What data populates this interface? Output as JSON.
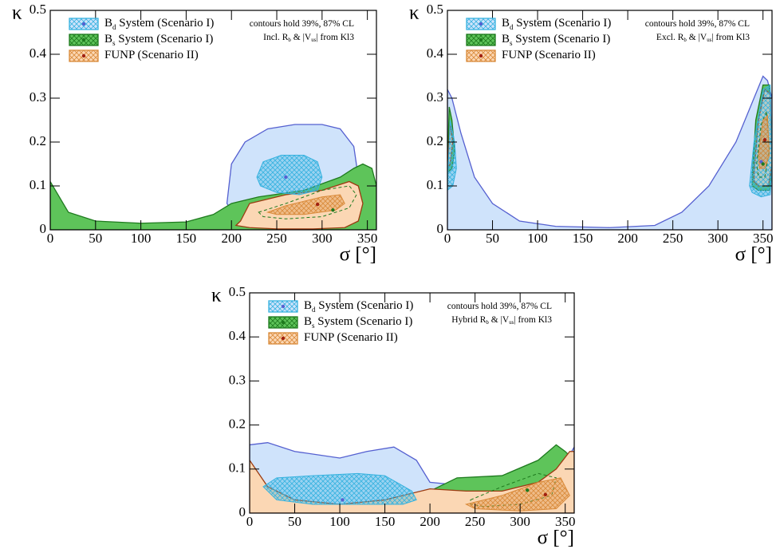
{
  "chart_data": [
    {
      "type": "contour",
      "xlabel": "σ [°]",
      "ylabel": "κ",
      "xlim": [
        0,
        360
      ],
      "ylim": [
        0,
        0.5
      ],
      "xticks": [
        0,
        50,
        100,
        150,
        200,
        250,
        300,
        350
      ],
      "yticks": [
        0,
        0.1,
        0.2,
        0.3,
        0.4,
        0.5
      ],
      "notes": [
        [
          "contours hold 39%, 87% CL"
        ],
        [
          "Incl. R",
          "b",
          " & |V",
          "us",
          "| from Kl3"
        ]
      ],
      "series": [
        {
          "name": [
            "B",
            "d",
            " System (Scenario I)"
          ],
          "color": "#cfe3fb",
          "line": "#5560d0",
          "hatch": "#36b2df",
          "inner_style": "hatch",
          "point": "#5560d0",
          "outer": [
            {
              "x": [
                195,
                200,
                215,
                240,
                270,
                300,
                320,
                335,
                340,
                338,
                330,
                310,
                280,
                250,
                220,
                200
              ],
              "y": [
                0.06,
                0.15,
                0.2,
                0.23,
                0.24,
                0.24,
                0.23,
                0.19,
                0.12,
                0.06,
                0.03,
                0.01,
                0.005,
                0.01,
                0.03,
                0.045
              ]
            }
          ],
          "inner": [
            {
              "x": [
                228,
                235,
                255,
                280,
                295,
                300,
                295,
                275,
                250,
                232
              ],
              "y": [
                0.12,
                0.155,
                0.17,
                0.17,
                0.155,
                0.12,
                0.09,
                0.08,
                0.085,
                0.1
              ]
            }
          ],
          "best_fit": {
            "x": 260,
            "y": 0.12
          }
        },
        {
          "name": [
            "B",
            "s",
            " System (Scenario I)"
          ],
          "color": "#5ec45a",
          "line": "#1e7a1e",
          "hatch": "#1e7a1e",
          "inner_style": "dashed",
          "point": "#1e7a1e",
          "outer": [
            {
              "x": [
                0,
                0,
                20,
                50,
                100,
                150,
                180,
                200,
                230,
                280,
                320,
                335,
                345,
                355,
                360,
                360
              ],
              "y": [
                0,
                0.11,
                0.04,
                0.02,
                0.015,
                0.018,
                0.035,
                0.06,
                0.075,
                0.09,
                0.12,
                0.14,
                0.15,
                0.14,
                0.1,
                0
              ]
            }
          ],
          "inner": [
            {
              "x": [
                230,
                260,
                300,
                330,
                338,
                330,
                300,
                260,
                235
              ],
              "y": [
                0.04,
                0.06,
                0.09,
                0.1,
                0.08,
                0.05,
                0.03,
                0.025,
                0.03
              ]
            }
          ],
          "best_fit": {
            "x": 312,
            "y": 0.045
          }
        },
        {
          "name": [
            "FUNP (Scenario II)"
          ],
          "color": "#fbd7b4",
          "line": "#9a3a10",
          "hatch": "#d98a3a",
          "inner_style": "hatch",
          "point": "#a02010",
          "outer": [
            {
              "x": [
                210,
                220,
                260,
                300,
                330,
                340,
                345,
                340,
                325,
                290,
                250,
                220,
                205
              ],
              "y": [
                0.02,
                0.06,
                0.08,
                0.09,
                0.11,
                0.1,
                0.06,
                0.02,
                0.005,
                0.002,
                0.002,
                0.005,
                0.01
              ]
            }
          ],
          "inner": [
            {
              "x": [
                240,
                260,
                300,
                320,
                325,
                315,
                280,
                250
              ],
              "y": [
                0.04,
                0.055,
                0.075,
                0.08,
                0.06,
                0.045,
                0.035,
                0.035
              ]
            }
          ],
          "best_fit": {
            "x": 295,
            "y": 0.058
          }
        }
      ]
    },
    {
      "type": "contour",
      "xlabel": "σ [°]",
      "ylabel": "κ",
      "xlim": [
        0,
        360
      ],
      "ylim": [
        0,
        0.5
      ],
      "xticks": [
        0,
        50,
        100,
        150,
        200,
        250,
        300,
        350
      ],
      "yticks": [
        0,
        0.1,
        0.2,
        0.3,
        0.4,
        0.5
      ],
      "notes": [
        [
          "contours hold 39%, 87% CL"
        ],
        [
          "Excl. R",
          "b",
          " & |V",
          "us",
          "| from Kl3"
        ]
      ],
      "series": [
        {
          "name": [
            "B",
            "d",
            " System (Scenario I)"
          ],
          "color": "#cfe3fb",
          "line": "#5560d0",
          "hatch": "#36b2df",
          "inner_style": "hatch",
          "point": "#5560d0",
          "outer": [
            {
              "x": [
                0,
                0,
                5,
                15,
                30,
                50,
                80,
                120,
                180,
                230,
                260,
                290,
                320,
                340,
                350,
                355,
                360,
                360
              ],
              "y": [
                0,
                0.32,
                0.3,
                0.22,
                0.12,
                0.06,
                0.02,
                0.008,
                0.005,
                0.01,
                0.04,
                0.1,
                0.2,
                0.3,
                0.35,
                0.34,
                0.3,
                0
              ]
            }
          ],
          "inner": [
            {
              "x": [
                335,
                340,
                350,
                358,
                360,
                358,
                348,
                338
              ],
              "y": [
                0.1,
                0.2,
                0.32,
                0.33,
                0.15,
                0.08,
                0.075,
                0.085
              ]
            },
            {
              "x": [
                0,
                3,
                8,
                10,
                6,
                0
              ],
              "y": [
                0.1,
                0.25,
                0.2,
                0.14,
                0.1,
                0.09
              ]
            }
          ],
          "best_fit": {
            "x": 348,
            "y": 0.155
          }
        },
        {
          "name": [
            "B",
            "s",
            " System (Scenario I)"
          ],
          "color": "#5ec45a",
          "line": "#1e7a1e",
          "hatch": "#1e7a1e",
          "inner_style": "dashed",
          "point": "#1e7a1e",
          "outer": [
            {
              "x": [
                338,
                342,
                350,
                357,
                360,
                358,
                345,
                338
              ],
              "y": [
                0.12,
                0.25,
                0.33,
                0.33,
                0.15,
                0.09,
                0.09,
                0.1
              ]
            },
            {
              "x": [
                0,
                2,
                5,
                8,
                5,
                0
              ],
              "y": [
                0.14,
                0.28,
                0.25,
                0.18,
                0.14,
                0.13
              ]
            }
          ],
          "inner": [
            {
              "x": [
                343,
                348,
                354,
                357,
                352,
                345
              ],
              "y": [
                0.15,
                0.24,
                0.27,
                0.18,
                0.12,
                0.12
              ]
            }
          ],
          "best_fit": {
            "x": 350,
            "y": 0.15
          }
        },
        {
          "name": [
            "FUNP (Scenario II)"
          ],
          "color": "#fbd7b4",
          "line": "#9a3a10",
          "hatch": "#d98a3a",
          "inner_style": "hatch",
          "point": "#a02010",
          "outer": [
            {
              "x": [
                340,
                345,
                352,
                358,
                360,
                356,
                345,
                340
              ],
              "y": [
                0.13,
                0.25,
                0.32,
                0.31,
                0.15,
                0.1,
                0.1,
                0.11
              ]
            },
            {
              "x": [
                0,
                3,
                6,
                3,
                0
              ],
              "y": [
                0.15,
                0.24,
                0.2,
                0.15,
                0.14
              ]
            }
          ],
          "inner": [
            {
              "x": [
                345,
                350,
                355,
                357,
                352,
                346
              ],
              "y": [
                0.17,
                0.25,
                0.26,
                0.17,
                0.14,
                0.14
              ]
            }
          ],
          "best_fit": {
            "x": 352,
            "y": 0.205
          }
        }
      ]
    },
    {
      "type": "contour",
      "xlabel": "σ [°]",
      "ylabel": "κ",
      "xlim": [
        0,
        360
      ],
      "ylim": [
        0,
        0.5
      ],
      "xticks": [
        0,
        50,
        100,
        150,
        200,
        250,
        300,
        350
      ],
      "yticks": [
        0,
        0.1,
        0.2,
        0.3,
        0.4,
        0.5
      ],
      "notes": [
        [
          "contours hold 39%, 87% CL"
        ],
        [
          "Hybrid R",
          "b",
          " & |V",
          "us",
          "| from Kl3"
        ]
      ],
      "series": [
        {
          "name": [
            "B",
            "d",
            " System (Scenario I)"
          ],
          "color": "#cfe3fb",
          "line": "#5560d0",
          "hatch": "#36b2df",
          "inner_style": "hatch",
          "point": "#5560d0",
          "outer": [
            {
              "x": [
                0,
                0,
                20,
                50,
                100,
                130,
                160,
                185,
                200,
                250,
                300,
                340,
                360,
                360
              ],
              "y": [
                0,
                0.155,
                0.16,
                0.14,
                0.125,
                0.14,
                0.15,
                0.12,
                0.07,
                0.06,
                0.06,
                0.08,
                0.15,
                0
              ]
            }
          ],
          "inner": [
            {
              "x": [
                15,
                30,
                70,
                120,
                150,
                180,
                185,
                170,
                120,
                70,
                30
              ],
              "y": [
                0.06,
                0.08,
                0.085,
                0.09,
                0.085,
                0.05,
                0.03,
                0.02,
                0.02,
                0.02,
                0.03
              ]
            }
          ],
          "best_fit": {
            "x": 103,
            "y": 0.03
          }
        },
        {
          "name": [
            "B",
            "s",
            " System (Scenario I)"
          ],
          "color": "#5ec45a",
          "line": "#1e7a1e",
          "hatch": "#1e7a1e",
          "inner_style": "dashed",
          "point": "#1e7a1e",
          "outer": [
            {
              "x": [
                200,
                230,
                280,
                320,
                340,
                350,
                360,
                360,
                200
              ],
              "y": [
                0.05,
                0.08,
                0.085,
                0.12,
                0.155,
                0.14,
                0.12,
                0,
                0
              ]
            }
          ],
          "inner": [
            {
              "x": [
                245,
                280,
                320,
                340,
                335,
                300,
                260,
                245
              ],
              "y": [
                0.03,
                0.06,
                0.09,
                0.08,
                0.04,
                0.02,
                0.015,
                0.02
              ]
            }
          ],
          "best_fit": {
            "x": 308,
            "y": 0.052
          }
        },
        {
          "name": [
            "FUNP (Scenario II)"
          ],
          "color": "#fbd7b4",
          "line": "#9a3a10",
          "hatch": "#d98a3a",
          "inner_style": "hatch",
          "point": "#a02010",
          "outer": [
            {
              "x": [
                0,
                0,
                20,
                50,
                100,
                150,
                200,
                240,
                280,
                320,
                340,
                355,
                360,
                360
              ],
              "y": [
                0,
                0.12,
                0.06,
                0.03,
                0.02,
                0.03,
                0.055,
                0.05,
                0.05,
                0.07,
                0.1,
                0.14,
                0.14,
                0
              ]
            }
          ],
          "inner": [
            {
              "x": [
                240,
                280,
                320,
                345,
                355,
                340,
                300,
                250
              ],
              "y": [
                0.02,
                0.04,
                0.07,
                0.08,
                0.04,
                0.01,
                0.005,
                0.01
              ]
            }
          ],
          "best_fit": {
            "x": 328,
            "y": 0.042
          }
        }
      ]
    }
  ]
}
